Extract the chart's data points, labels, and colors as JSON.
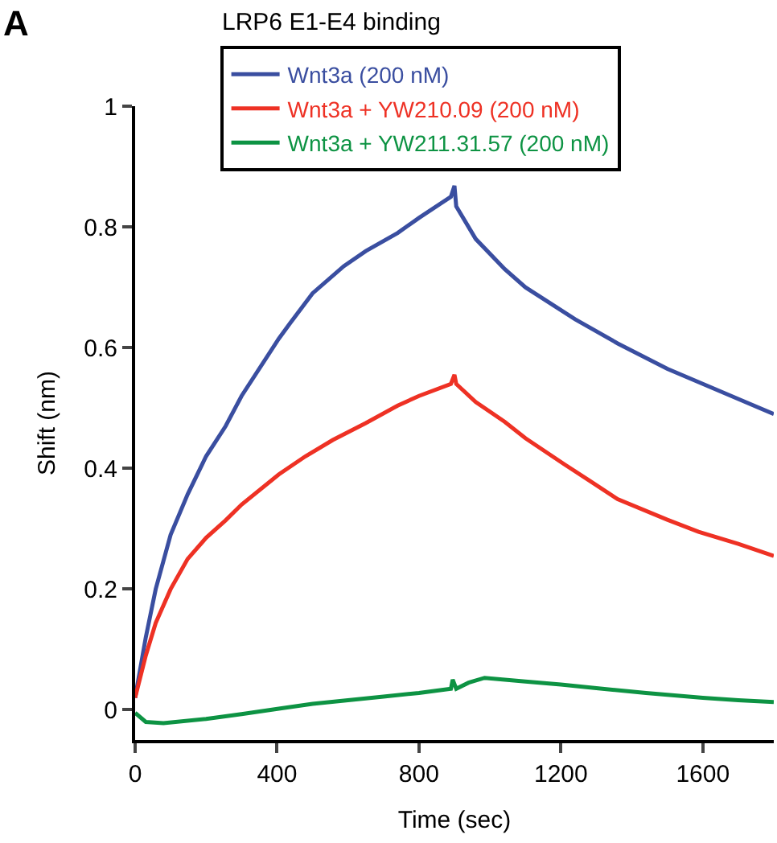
{
  "chart_data": {
    "type": "line",
    "title": "LRP6 E1-E4 binding",
    "xlabel": "Time (sec)",
    "ylabel": "Shift (nm)",
    "annotations": [
      "A"
    ],
    "xlim": [
      0,
      1800
    ],
    "xticks": [
      0,
      400,
      800,
      1200,
      1600
    ],
    "ylim": [
      -0.05,
      1
    ],
    "yticks": [
      0,
      0.2,
      0.4,
      0.6,
      0.8,
      1
    ],
    "legend": "top",
    "marker": "none",
    "line_style": "solid",
    "series": [
      {
        "name": "Wnt3a (200 nM)",
        "color": "#3a4ea0",
        "x": [
          0,
          30,
          58,
          100,
          148,
          200,
          255,
          300,
          405,
          436,
          500,
          588,
          650,
          740,
          800,
          890,
          900,
          905,
          960,
          1042,
          1100,
          1240,
          1360,
          1500,
          1588,
          1700,
          1800
        ],
        "values": [
          0.02,
          0.12,
          0.2,
          0.29,
          0.357,
          0.42,
          0.47,
          0.52,
          0.615,
          0.64,
          0.69,
          0.735,
          0.76,
          0.79,
          0.815,
          0.85,
          0.868,
          0.834,
          0.78,
          0.73,
          0.7,
          0.647,
          0.607,
          0.565,
          0.543,
          0.515,
          0.49
        ]
      },
      {
        "name": "Wnt3a + YW210.09 (200 nM)",
        "color": "#ee3124",
        "x": [
          0,
          30,
          58,
          100,
          148,
          200,
          255,
          300,
          405,
          480,
          557,
          650,
          740,
          800,
          890,
          900,
          905,
          960,
          1042,
          1100,
          1209,
          1280,
          1360,
          1500,
          1588,
          1700,
          1800
        ],
        "values": [
          0.02,
          0.09,
          0.144,
          0.2,
          0.25,
          0.285,
          0.314,
          0.34,
          0.39,
          0.42,
          0.447,
          0.475,
          0.504,
          0.52,
          0.54,
          0.555,
          0.54,
          0.51,
          0.477,
          0.45,
          0.407,
          0.38,
          0.349,
          0.315,
          0.295,
          0.275,
          0.255
        ]
      },
      {
        "name": "Wnt3a + YW211.31.57 (200 nM)",
        "color": "#0d9343",
        "x": [
          0,
          30,
          80,
          200,
          300,
          405,
          500,
          600,
          700,
          800,
          890,
          895,
          905,
          940,
          985,
          1100,
          1200,
          1300,
          1440,
          1600,
          1700,
          1800
        ],
        "values": [
          -0.005,
          -0.02,
          -0.022,
          -0.015,
          -0.007,
          0.002,
          0.01,
          0.016,
          0.022,
          0.028,
          0.035,
          0.05,
          0.035,
          0.045,
          0.053,
          0.047,
          0.042,
          0.036,
          0.028,
          0.02,
          0.016,
          0.013
        ]
      }
    ]
  }
}
